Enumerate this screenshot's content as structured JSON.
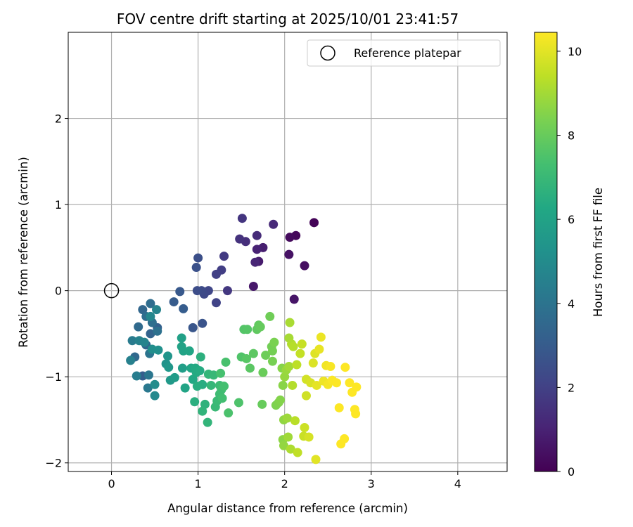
{
  "chart_data": {
    "type": "scatter",
    "title": "FOV centre drift starting at 2025/10/01 23:41:57",
    "xlabel": "Angular distance from reference (arcmin)",
    "ylabel": "Rotation from reference (arcmin)",
    "xlim": [
      -0.5,
      4.57
    ],
    "ylim": [
      -2.1,
      3.0
    ],
    "xticks": [
      0,
      1,
      2,
      3,
      4
    ],
    "yticks": [
      -2,
      -1,
      0,
      1,
      2
    ],
    "xtick_labels": [
      "0",
      "1",
      "2",
      "3",
      "4"
    ],
    "ytick_labels": [
      "−2",
      "−1",
      "0",
      "1",
      "2"
    ],
    "grid": true,
    "legend": {
      "position": "top-right",
      "label": "Reference platepar"
    },
    "reference_point": {
      "x": 0,
      "y": 0
    },
    "colorbar": {
      "label": "Hours from first FF file",
      "range": [
        0,
        10.45
      ],
      "ticks": [
        0,
        2,
        4,
        6,
        8,
        10
      ],
      "tick_labels": [
        "0",
        "2",
        "4",
        "6",
        "8",
        "10"
      ],
      "colormap": "viridis"
    },
    "series": [
      {
        "points": [
          [
            2.34,
            0.79,
            0.1
          ],
          [
            2.13,
            0.64,
            0.2
          ],
          [
            2.06,
            0.62,
            0.3
          ],
          [
            2.23,
            0.29,
            0.4
          ],
          [
            2.05,
            0.42,
            0.5
          ],
          [
            2.11,
            -0.1,
            0.6
          ],
          [
            1.64,
            0.05,
            0.7
          ],
          [
            1.7,
            0.34,
            0.8
          ],
          [
            1.75,
            0.5,
            0.9
          ],
          [
            1.68,
            0.48,
            1.0
          ],
          [
            1.66,
            0.33,
            1.1
          ],
          [
            1.87,
            0.77,
            1.2
          ],
          [
            1.68,
            0.64,
            1.3
          ],
          [
            1.55,
            0.57,
            1.4
          ],
          [
            1.48,
            0.6,
            1.5
          ],
          [
            1.51,
            0.84,
            1.6
          ],
          [
            1.34,
            0.0,
            1.7
          ],
          [
            1.3,
            0.4,
            1.8
          ],
          [
            1.27,
            0.24,
            1.9
          ],
          [
            1.21,
            0.19,
            2.0
          ],
          [
            1.21,
            -0.14,
            2.1
          ],
          [
            1.12,
            0.0,
            2.2
          ],
          [
            1.07,
            -0.04,
            2.3
          ],
          [
            1.04,
            0.0,
            2.35
          ],
          [
            0.99,
            0.0,
            2.45
          ],
          [
            1.0,
            0.38,
            2.5
          ],
          [
            0.98,
            0.27,
            2.6
          ],
          [
            1.05,
            -0.38,
            2.7
          ],
          [
            0.94,
            -0.43,
            2.8
          ],
          [
            0.79,
            -0.01,
            2.9
          ],
          [
            0.72,
            -0.13,
            3.0
          ],
          [
            0.83,
            -0.21,
            3.05
          ],
          [
            0.36,
            -0.99,
            3.1
          ],
          [
            0.53,
            -0.43,
            3.2
          ],
          [
            0.45,
            -0.5,
            3.3
          ],
          [
            0.4,
            -0.63,
            3.4
          ],
          [
            0.36,
            -0.22,
            3.45
          ],
          [
            0.27,
            -0.77,
            3.55
          ],
          [
            0.31,
            -0.42,
            3.6
          ],
          [
            0.45,
            -0.15,
            3.7
          ],
          [
            0.4,
            -0.3,
            3.75
          ],
          [
            0.47,
            -0.37,
            3.8
          ],
          [
            0.53,
            -0.47,
            3.9
          ],
          [
            0.44,
            -0.73,
            4.0
          ],
          [
            0.43,
            -0.98,
            4.1
          ],
          [
            0.42,
            -1.13,
            4.2
          ],
          [
            0.24,
            -0.58,
            4.3
          ],
          [
            0.29,
            -0.99,
            4.4
          ],
          [
            0.22,
            -0.81,
            4.5
          ],
          [
            0.32,
            -0.58,
            4.6
          ],
          [
            0.38,
            -0.6,
            4.65
          ],
          [
            0.52,
            -0.22,
            4.7
          ],
          [
            0.45,
            -0.3,
            4.8
          ],
          [
            0.5,
            -1.22,
            4.9
          ],
          [
            0.5,
            -1.09,
            5.0
          ],
          [
            0.47,
            -0.68,
            5.1
          ],
          [
            0.54,
            -0.69,
            5.2
          ],
          [
            0.63,
            -0.85,
            5.3
          ],
          [
            0.65,
            -0.76,
            5.4
          ],
          [
            0.66,
            -0.89,
            5.5
          ],
          [
            0.68,
            -1.04,
            5.6
          ],
          [
            0.73,
            -1.01,
            5.7
          ],
          [
            0.82,
            -0.9,
            5.8
          ],
          [
            0.81,
            -0.55,
            5.9
          ],
          [
            0.81,
            -0.65,
            6.0
          ],
          [
            0.83,
            -0.7,
            6.05
          ],
          [
            0.85,
            -1.13,
            6.1
          ],
          [
            0.9,
            -0.7,
            6.15
          ],
          [
            0.92,
            -0.9,
            6.2
          ],
          [
            0.94,
            -1.03,
            6.25
          ],
          [
            0.97,
            -0.9,
            6.3
          ],
          [
            0.98,
            -0.95,
            6.35
          ],
          [
            1.02,
            -0.93,
            6.4
          ],
          [
            1.05,
            -1.09,
            6.45
          ],
          [
            0.99,
            -1.11,
            6.5
          ],
          [
            0.96,
            -1.29,
            6.55
          ],
          [
            1.03,
            -0.77,
            6.6
          ],
          [
            1.08,
            -1.32,
            6.7
          ],
          [
            1.05,
            -1.4,
            6.75
          ],
          [
            1.11,
            -1.53,
            6.8
          ],
          [
            1.12,
            -0.97,
            6.85
          ],
          [
            1.15,
            -1.1,
            6.9
          ],
          [
            1.18,
            -0.98,
            6.95
          ],
          [
            1.2,
            -1.35,
            7.0
          ],
          [
            1.22,
            -1.28,
            7.05
          ],
          [
            1.25,
            -1.1,
            7.1
          ],
          [
            1.25,
            -1.2,
            7.15
          ],
          [
            1.27,
            -1.15,
            7.2
          ],
          [
            1.28,
            -1.25,
            7.25
          ],
          [
            1.3,
            -1.11,
            7.3
          ],
          [
            1.26,
            -0.96,
            7.35
          ],
          [
            1.32,
            -0.83,
            7.4
          ],
          [
            1.35,
            -1.42,
            7.45
          ],
          [
            1.47,
            -1.3,
            7.5
          ],
          [
            1.5,
            -0.77,
            7.55
          ],
          [
            1.53,
            -0.45,
            7.6
          ],
          [
            1.57,
            -0.45,
            7.65
          ],
          [
            1.56,
            -0.79,
            7.7
          ],
          [
            1.6,
            -0.9,
            7.75
          ],
          [
            1.64,
            -0.73,
            7.8
          ],
          [
            1.68,
            -0.45,
            7.85
          ],
          [
            1.7,
            -0.4,
            7.9
          ],
          [
            1.72,
            -0.42,
            7.95
          ],
          [
            1.74,
            -1.32,
            8.0
          ],
          [
            1.75,
            -0.95,
            8.05
          ],
          [
            1.78,
            -0.75,
            8.1
          ],
          [
            1.83,
            -0.3,
            8.15
          ],
          [
            1.85,
            -0.65,
            8.2
          ],
          [
            1.86,
            -0.7,
            8.25
          ],
          [
            1.86,
            -0.82,
            8.3
          ],
          [
            1.88,
            -0.6,
            8.35
          ],
          [
            1.9,
            -1.33,
            8.4
          ],
          [
            1.93,
            -1.3,
            8.45
          ],
          [
            1.95,
            -1.27,
            8.5
          ],
          [
            1.97,
            -0.9,
            8.55
          ],
          [
            1.98,
            -1.1,
            8.6
          ],
          [
            1.98,
            -1.73,
            8.65
          ],
          [
            1.99,
            -1.5,
            8.7
          ],
          [
            1.99,
            -1.8,
            8.75
          ],
          [
            2.0,
            -1.0,
            8.8
          ],
          [
            2.02,
            -0.92,
            8.85
          ],
          [
            2.03,
            -1.48,
            8.9
          ],
          [
            2.04,
            -1.7,
            8.95
          ],
          [
            2.05,
            -0.88,
            9.0
          ],
          [
            2.05,
            -0.55,
            9.05
          ],
          [
            2.06,
            -0.37,
            9.1
          ],
          [
            2.07,
            -1.84,
            9.15
          ],
          [
            2.08,
            -0.62,
            9.2
          ],
          [
            2.09,
            -1.1,
            9.25
          ],
          [
            2.1,
            -0.65,
            9.3
          ],
          [
            2.12,
            -1.51,
            9.35
          ],
          [
            2.14,
            -0.86,
            9.4
          ],
          [
            2.15,
            -1.88,
            9.45
          ],
          [
            2.18,
            -0.73,
            9.5
          ],
          [
            2.2,
            -0.62,
            9.55
          ],
          [
            2.22,
            -1.69,
            9.6
          ],
          [
            2.23,
            -1.59,
            9.65
          ],
          [
            2.25,
            -1.22,
            9.7
          ],
          [
            2.25,
            -1.03,
            9.75
          ],
          [
            2.28,
            -1.7,
            9.8
          ],
          [
            2.3,
            -1.07,
            9.85
          ],
          [
            2.33,
            -0.84,
            9.9
          ],
          [
            2.35,
            -0.73,
            9.95
          ],
          [
            2.36,
            -1.96,
            10.0
          ],
          [
            2.37,
            -1.1,
            10.05
          ],
          [
            2.4,
            -0.68,
            10.1
          ],
          [
            2.42,
            -0.54,
            10.15
          ],
          [
            2.45,
            -1.05,
            10.2
          ],
          [
            2.48,
            -0.87,
            10.25
          ],
          [
            2.5,
            -1.09,
            10.3
          ],
          [
            2.53,
            -0.88,
            10.35
          ],
          [
            2.55,
            -1.04,
            10.4
          ],
          [
            2.6,
            -1.07,
            10.42
          ],
          [
            2.63,
            -1.36,
            10.44
          ],
          [
            2.65,
            -1.78,
            10.45
          ],
          [
            2.69,
            -1.72,
            10.45
          ],
          [
            2.7,
            -0.89,
            10.45
          ],
          [
            2.75,
            -1.07,
            10.45
          ],
          [
            2.78,
            -1.18,
            10.45
          ],
          [
            2.81,
            -1.38,
            10.45
          ],
          [
            2.82,
            -1.43,
            10.45
          ],
          [
            2.83,
            -1.12,
            10.45
          ]
        ]
      }
    ]
  }
}
